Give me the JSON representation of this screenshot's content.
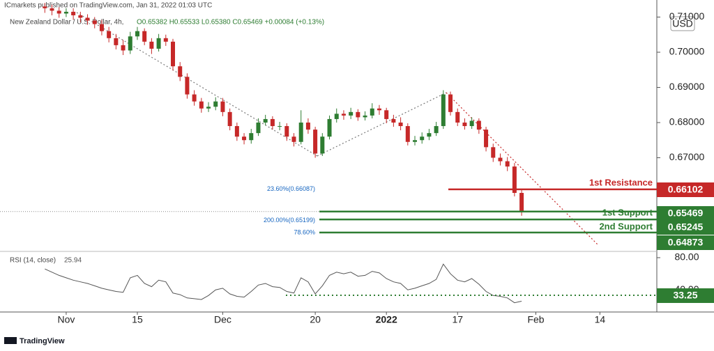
{
  "header": {
    "publisher": "ICmarkets published on TradingView.com, Jan 31, 2022 01:03 UTC",
    "symbol": "New Zealand Dollar / U.S. Dollar, 4h,",
    "ohlc": "O0.65382 H0.65533 L0.65380 C0.65469 +0.00084 (+0.13%)",
    "currency": "USD"
  },
  "chart_data": [
    {
      "type": "candlestick",
      "up_color": "#2e7d32",
      "down_color": "#c62828",
      "x": [
        -3,
        -2,
        -1,
        0,
        1,
        2,
        3,
        4,
        5,
        6,
        7,
        8,
        9,
        10,
        11,
        12,
        13,
        14,
        15,
        16,
        17,
        18,
        19,
        20,
        21,
        22,
        23,
        24,
        25,
        26,
        27,
        28,
        29,
        30,
        31,
        32,
        33,
        34,
        35,
        36,
        37,
        38,
        39,
        40,
        41,
        42,
        43,
        44,
        45,
        46,
        47,
        48,
        49,
        50,
        51,
        52,
        53,
        54,
        55,
        56,
        57,
        58,
        59,
        60,
        61,
        62,
        63,
        64
      ],
      "open": [
        0.713,
        0.7125,
        0.7118,
        0.711,
        0.7115,
        0.7105,
        0.7098,
        0.709,
        0.708,
        0.706,
        0.704,
        0.702,
        0.7005,
        0.7045,
        0.706,
        0.703,
        0.701,
        0.704,
        0.703,
        0.696,
        0.693,
        0.688,
        0.686,
        0.684,
        0.6845,
        0.686,
        0.683,
        0.679,
        0.676,
        0.675,
        0.677,
        0.68,
        0.681,
        0.679,
        0.679,
        0.676,
        0.6745,
        0.68,
        0.678,
        0.6712,
        0.676,
        0.681,
        0.6825,
        0.682,
        0.683,
        0.6815,
        0.682,
        0.684,
        0.6835,
        0.681,
        0.68,
        0.679,
        0.6745,
        0.675,
        0.676,
        0.677,
        0.679,
        0.688,
        0.683,
        0.68,
        0.679,
        0.6805,
        0.678,
        0.673,
        0.67,
        0.669,
        0.6675,
        0.66
      ],
      "high": [
        0.714,
        0.7135,
        0.7128,
        0.7125,
        0.7125,
        0.7115,
        0.7108,
        0.71,
        0.7092,
        0.7072,
        0.7052,
        0.7035,
        0.7058,
        0.7072,
        0.7068,
        0.704,
        0.7052,
        0.705,
        0.7038,
        0.6972,
        0.694,
        0.6892,
        0.687,
        0.6858,
        0.6872,
        0.687,
        0.684,
        0.68,
        0.677,
        0.6782,
        0.6812,
        0.6822,
        0.6818,
        0.6802,
        0.6798,
        0.677,
        0.6835,
        0.6812,
        0.6788,
        0.677,
        0.682,
        0.684,
        0.6835,
        0.6842,
        0.6838,
        0.6832,
        0.6855,
        0.685,
        0.6842,
        0.6822,
        0.6815,
        0.6798,
        0.6762,
        0.6772,
        0.6782,
        0.6802,
        0.6892,
        0.6888,
        0.684,
        0.6812,
        0.6815,
        0.6812,
        0.6788,
        0.674,
        0.6712,
        0.6702,
        0.6685,
        0.661
      ],
      "low": [
        0.7112,
        0.7105,
        0.7098,
        0.71,
        0.7092,
        0.7085,
        0.7078,
        0.7068,
        0.7048,
        0.7028,
        0.7008,
        0.6992,
        0.6995,
        0.7035,
        0.702,
        0.6995,
        0.7002,
        0.7018,
        0.6948,
        0.6918,
        0.6868,
        0.6848,
        0.6828,
        0.683,
        0.6835,
        0.6818,
        0.6778,
        0.6748,
        0.6738,
        0.674,
        0.6762,
        0.6792,
        0.678,
        0.6778,
        0.6748,
        0.6732,
        0.6738,
        0.6768,
        0.67,
        0.6705,
        0.6752,
        0.68,
        0.6808,
        0.681,
        0.6805,
        0.6806,
        0.6812,
        0.6822,
        0.6798,
        0.6788,
        0.6778,
        0.6735,
        0.6735,
        0.674,
        0.675,
        0.6762,
        0.6782,
        0.682,
        0.679,
        0.678,
        0.6782,
        0.6768,
        0.6718,
        0.6688,
        0.6678,
        0.6662,
        0.659,
        0.6535
      ],
      "close": [
        0.7125,
        0.7118,
        0.711,
        0.7115,
        0.7105,
        0.7098,
        0.709,
        0.708,
        0.706,
        0.704,
        0.702,
        0.7005,
        0.7045,
        0.706,
        0.703,
        0.701,
        0.704,
        0.703,
        0.696,
        0.693,
        0.688,
        0.686,
        0.684,
        0.6845,
        0.686,
        0.683,
        0.679,
        0.676,
        0.675,
        0.677,
        0.68,
        0.681,
        0.679,
        0.679,
        0.676,
        0.6745,
        0.68,
        0.678,
        0.6712,
        0.676,
        0.681,
        0.6825,
        0.682,
        0.683,
        0.6815,
        0.682,
        0.684,
        0.6835,
        0.681,
        0.68,
        0.679,
        0.6745,
        0.675,
        0.676,
        0.677,
        0.679,
        0.688,
        0.683,
        0.68,
        0.679,
        0.6805,
        0.678,
        0.673,
        0.67,
        0.669,
        0.6675,
        0.66,
        0.6547
      ],
      "xlim": [
        -9.3,
        83.0
      ],
      "xticks": [
        {
          "value": 0,
          "label": "Nov"
        },
        {
          "value": 10,
          "label": "15"
        },
        {
          "value": 22,
          "label": "Dec"
        },
        {
          "value": 35,
          "label": "20"
        },
        {
          "value": 45,
          "label": "2022"
        },
        {
          "value": 55,
          "label": "17"
        },
        {
          "value": 66,
          "label": "Feb"
        },
        {
          "value": 75,
          "label": "14"
        }
      ],
      "ylim": [
        0.64356,
        0.71485
      ],
      "yticks": [
        {
          "value": 0.67,
          "label": "0.67000"
        },
        {
          "value": 0.68,
          "label": "0.68000"
        },
        {
          "value": 0.69,
          "label": "0.69000"
        },
        {
          "value": 0.7,
          "label": "0.70000"
        },
        {
          "value": 0.71,
          "label": "0.71000"
        }
      ],
      "levels": [
        {
          "name": "1st Resistance",
          "value": 0.66102,
          "color": "#c62828"
        },
        {
          "name": "1st Support",
          "value": 0.65469,
          "color": "#2e7d32"
        },
        {
          "name": "2nd Support",
          "value": 0.65245,
          "color": "#2e7d32"
        },
        {
          "value": 0.64873,
          "color": "#2e7d32"
        }
      ],
      "fib_levels": [
        {
          "label": "23.60%(0.66087)",
          "value": 0.66087
        },
        {
          "label": "200.00%(0.65199)",
          "value": 0.65199
        },
        {
          "label": "78.60%",
          "value": 0.6485
        }
      ]
    },
    {
      "type": "line",
      "title": "RSI (14, close)",
      "last_value": 25.94,
      "color": "#555555",
      "x": [
        -3,
        -2,
        -1,
        0,
        1,
        2,
        3,
        4,
        5,
        6,
        7,
        8,
        9,
        10,
        11,
        12,
        13,
        14,
        15,
        16,
        17,
        18,
        19,
        20,
        21,
        22,
        23,
        24,
        25,
        26,
        27,
        28,
        29,
        30,
        31,
        32,
        33,
        34,
        35,
        36,
        37,
        38,
        39,
        40,
        41,
        42,
        43,
        44,
        45,
        46,
        47,
        48,
        49,
        50,
        51,
        52,
        53,
        54,
        55,
        56,
        57,
        58,
        59,
        60,
        61,
        62,
        63,
        64
      ],
      "values": [
        66,
        62,
        58,
        55,
        52,
        50,
        48,
        45,
        42,
        40,
        38,
        37,
        55,
        58,
        48,
        44,
        52,
        50,
        36,
        34,
        30,
        29,
        28,
        33,
        40,
        42,
        35,
        32,
        31,
        38,
        46,
        48,
        44,
        43,
        38,
        36,
        55,
        50,
        35,
        45,
        58,
        62,
        60,
        62,
        57,
        58,
        63,
        61,
        54,
        50,
        48,
        40,
        42,
        45,
        48,
        53,
        72,
        60,
        52,
        50,
        54,
        47,
        38,
        33,
        32,
        30,
        24,
        25.94
      ],
      "ylim": [
        12.5,
        86.9
      ],
      "yticks": [
        {
          "value": 80,
          "label": "80.00"
        },
        {
          "value": 40,
          "label": "40.00"
        }
      ],
      "levels": [
        {
          "value": 33.25,
          "color": "#2e7d32"
        }
      ]
    }
  ],
  "footer": {
    "brand": "TradingView"
  }
}
